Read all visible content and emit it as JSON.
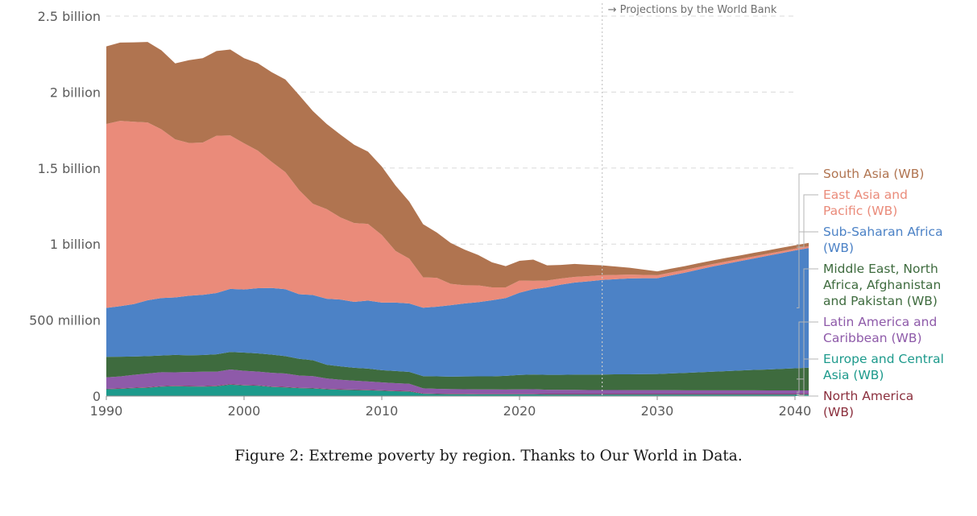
{
  "caption": "Figure 2: Extreme poverty by region. Thanks to Our World in Data.",
  "chart_data": {
    "type": "area",
    "stacked": true,
    "title": "",
    "xlabel": "",
    "ylabel": "",
    "xlim": [
      1990,
      2040
    ],
    "ylim": [
      0,
      2500000000
    ],
    "x_ticks": [
      1990,
      2000,
      2010,
      2020,
      2030,
      2040
    ],
    "x_tick_labels": [
      "1990",
      "2000",
      "2010",
      "2020",
      "2030",
      "2040"
    ],
    "y_ticks": [
      0,
      500000000,
      1000000000,
      1500000000,
      2000000000,
      2500000000
    ],
    "y_tick_labels": [
      "0",
      "500 million",
      "1 billion",
      "1.5 billion",
      "2 billion",
      "2.5 billion"
    ],
    "grid": "horizontal dashed",
    "legend_position": "right",
    "annotation": {
      "text": "→ Projections by the World Bank",
      "x": 2026
    },
    "x": [
      1990,
      1991,
      1992,
      1993,
      1994,
      1995,
      1996,
      1997,
      1998,
      1999,
      2000,
      2001,
      2002,
      2003,
      2004,
      2005,
      2006,
      2007,
      2008,
      2009,
      2010,
      2011,
      2012,
      2013,
      2014,
      2015,
      2016,
      2017,
      2018,
      2019,
      2020,
      2021,
      2022,
      2023,
      2024,
      2025,
      2026,
      2027,
      2028,
      2029,
      2030,
      2031,
      2032,
      2033,
      2034,
      2035,
      2036,
      2037,
      2038,
      2039,
      2040,
      2041
    ],
    "series": [
      {
        "name": "Europe and Central Asia (WB)",
        "color": "#1d9a8c",
        "values": [
          45,
          48,
          52,
          55,
          62,
          65,
          63,
          62,
          65,
          75,
          70,
          68,
          60,
          57,
          52,
          50,
          45,
          42,
          40,
          38,
          35,
          32,
          30,
          15,
          13,
          12,
          12,
          11,
          11,
          11,
          11,
          11,
          10,
          10,
          10,
          10,
          10,
          10,
          10,
          10,
          10,
          10,
          10,
          10,
          10,
          10,
          10,
          10,
          10,
          10,
          10,
          10
        ]
      },
      {
        "name": "North America (WB)",
        "color": "#8b2f3d",
        "values": [
          3,
          3,
          3,
          3,
          3,
          3,
          3,
          3,
          3,
          3,
          3,
          3,
          3,
          3,
          3,
          3,
          3,
          3,
          3,
          3,
          3,
          3,
          3,
          3,
          3,
          3,
          3,
          3,
          3,
          3,
          3,
          3,
          3,
          3,
          3,
          3,
          3,
          3,
          3,
          3,
          3,
          3,
          3,
          3,
          3,
          3,
          3,
          3,
          3,
          3,
          3,
          3
        ]
      },
      {
        "name": "Latin America and Caribbean (WB)",
        "color": "#8e5aa9",
        "values": [
          75,
          78,
          85,
          90,
          92,
          88,
          92,
          95,
          92,
          97,
          93,
          90,
          90,
          88,
          80,
          78,
          68,
          62,
          58,
          55,
          52,
          50,
          48,
          33,
          32,
          31,
          30,
          30,
          30,
          29,
          30,
          31,
          29,
          28,
          28,
          27,
          27,
          27,
          26,
          26,
          26,
          26,
          25,
          25,
          25,
          25,
          25,
          25,
          24,
          24,
          24,
          24
        ]
      },
      {
        "name": "Middle East, North Africa, Afghanistan and Pakistan (WB)",
        "color": "#3e6b3e",
        "values": [
          135,
          130,
          120,
          115,
          110,
          115,
          110,
          110,
          115,
          115,
          120,
          120,
          120,
          115,
          110,
          105,
          90,
          88,
          85,
          85,
          80,
          80,
          78,
          80,
          82,
          82,
          84,
          86,
          86,
          90,
          95,
          97,
          98,
          99,
          100,
          101,
          102,
          103,
          104,
          105,
          106,
          110,
          114,
          118,
          122,
          126,
          130,
          134,
          138,
          142,
          146,
          150
        ]
      },
      {
        "name": "Sub-Saharan Africa (WB)",
        "color": "#4c82c6",
        "values": [
          322,
          332,
          345,
          367,
          378,
          378,
          392,
          396,
          403,
          415,
          415,
          429,
          438,
          440,
          425,
          429,
          434,
          440,
          434,
          447,
          445,
          450,
          450,
          450,
          458,
          470,
          480,
          488,
          500,
          512,
          541,
          561,
          575,
          593,
          606,
          614,
          622,
          626,
          631,
          631,
          630,
          645,
          660,
          676,
          692,
          706,
          720,
          733,
          748,
          761,
          775,
          787
        ]
      },
      {
        "name": "East Asia and Pacific (WB)",
        "color": "#ea8b7a",
        "values": [
          1210,
          1220,
          1200,
          1170,
          1110,
          1040,
          1005,
          1002,
          1035,
          1010,
          962,
          905,
          830,
          770,
          685,
          600,
          590,
          540,
          518,
          505,
          445,
          340,
          295,
          200,
          190,
          140,
          120,
          110,
          85,
          70,
          80,
          55,
          45,
          40,
          37,
          34,
          31,
          28,
          25,
          22,
          20,
          19,
          18,
          17,
          16,
          15,
          14,
          14,
          13,
          13,
          12,
          12
        ]
      },
      {
        "name": "South Asia (WB)",
        "color": "#b07450",
        "values": [
          511,
          515,
          522,
          530,
          520,
          500,
          545,
          555,
          557,
          565,
          560,
          575,
          590,
          610,
          625,
          610,
          560,
          545,
          515,
          475,
          450,
          430,
          375,
          350,
          298,
          270,
          235,
          200,
          165,
          140,
          130,
          140,
          100,
          90,
          85,
          75,
          65,
          55,
          45,
          35,
          25,
          25,
          25,
          25,
          24,
          24,
          23,
          23,
          22,
          22,
          22,
          22
        ]
      }
    ],
    "values_unit": "millions of people",
    "legend_order": [
      "South Asia (WB)",
      "East Asia and Pacific (WB)",
      "Sub-Saharan Africa (WB)",
      "Middle East, North Africa, Afghanistan and Pakistan (WB)",
      "Latin America and Caribbean (WB)",
      "Europe and Central Asia (WB)",
      "North America (WB)"
    ],
    "legend_labels": [
      {
        "series": "South Asia (WB)",
        "lines": [
          "South Asia (WB)"
        ]
      },
      {
        "series": "East Asia and Pacific (WB)",
        "lines": [
          "East Asia and",
          "Pacific (WB)"
        ]
      },
      {
        "series": "Sub-Saharan Africa (WB)",
        "lines": [
          "Sub-Saharan Africa",
          "(WB)"
        ]
      },
      {
        "series": "Middle East, North Africa, Afghanistan and Pakistan (WB)",
        "lines": [
          "Middle East, North",
          "Africa, Afghanistan",
          "and Pakistan (WB)"
        ]
      },
      {
        "series": "Latin America and Caribbean (WB)",
        "lines": [
          "Latin America and",
          "Caribbean (WB)"
        ]
      },
      {
        "series": "Europe and Central Asia (WB)",
        "lines": [
          "Europe and Central",
          "Asia (WB)"
        ]
      },
      {
        "series": "North America (WB)",
        "lines": [
          "North America",
          "(WB)"
        ]
      }
    ]
  }
}
